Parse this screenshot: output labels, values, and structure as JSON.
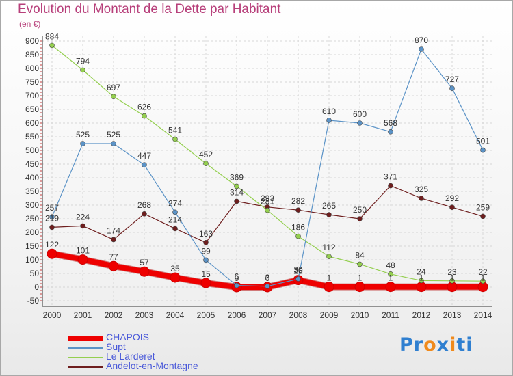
{
  "title": "Evolution du Montant de la Dette par Habitant",
  "unit": "(en €)",
  "logo": {
    "parts": [
      "Pr",
      "o",
      "x",
      "i",
      "ti"
    ],
    "colors": [
      "#2f7fd0",
      "#f08a1c",
      "#2f7fd0",
      "#f08a1c",
      "#2f7fd0"
    ]
  },
  "chart_data": {
    "type": "line",
    "x": [
      "2000",
      "2001",
      "2002",
      "2003",
      "2004",
      "2005",
      "2006",
      "2007",
      "2008",
      "2009",
      "2010",
      "2011",
      "2012",
      "2013",
      "2014"
    ],
    "ylim": [
      -50,
      900
    ],
    "yticks": [
      -50,
      0,
      50,
      100,
      150,
      200,
      250,
      300,
      350,
      400,
      450,
      500,
      550,
      600,
      650,
      700,
      750,
      800,
      850,
      900
    ],
    "grid": true,
    "legend_position": "bottom-left",
    "series": [
      {
        "name": "CHAPOIS",
        "color": "#ee0000",
        "width": 8,
        "marker": 7,
        "values": [
          122,
          101,
          77,
          57,
          35,
          15,
          0,
          0,
          26,
          1,
          1,
          1,
          1,
          1,
          1
        ],
        "labels": [
          "122",
          "101",
          "77",
          "57",
          "35",
          "15",
          "0",
          "0",
          "26",
          "1",
          "1",
          "1",
          "1",
          "1",
          "1"
        ]
      },
      {
        "name": "Supt",
        "color": "#5b93c7",
        "width": 1.2,
        "marker": 3.5,
        "values": [
          257,
          525,
          525,
          447,
          274,
          99,
          6,
          3,
          30,
          610,
          600,
          568,
          870,
          727,
          501
        ],
        "labels": [
          "257",
          "525",
          "525",
          "447",
          "274",
          "99",
          "6",
          "3",
          "30",
          "610",
          "600",
          "568",
          "870",
          "727",
          "501"
        ]
      },
      {
        "name": "Le Larderet",
        "color": "#94cf4f",
        "width": 1.2,
        "marker": 3.5,
        "values": [
          884,
          794,
          697,
          626,
          541,
          452,
          369,
          281,
          186,
          112,
          84,
          48,
          24,
          23,
          22
        ],
        "labels": [
          "884",
          "794",
          "697",
          "626",
          "541",
          "452",
          "369",
          "281",
          "186",
          "112",
          "84",
          "48",
          "24",
          "23",
          "22"
        ]
      },
      {
        "name": "Andelot-en-Montagne",
        "color": "#6e1e1e",
        "width": 1.2,
        "marker": 3.5,
        "values": [
          219,
          224,
          174,
          268,
          214,
          163,
          314,
          293,
          282,
          265,
          250,
          371,
          325,
          292,
          259
        ],
        "labels": [
          "219",
          "224",
          "174",
          "268",
          "214",
          "163",
          "314",
          "293",
          "282",
          "265",
          "250",
          "371",
          "325",
          "292",
          "259"
        ]
      }
    ]
  }
}
